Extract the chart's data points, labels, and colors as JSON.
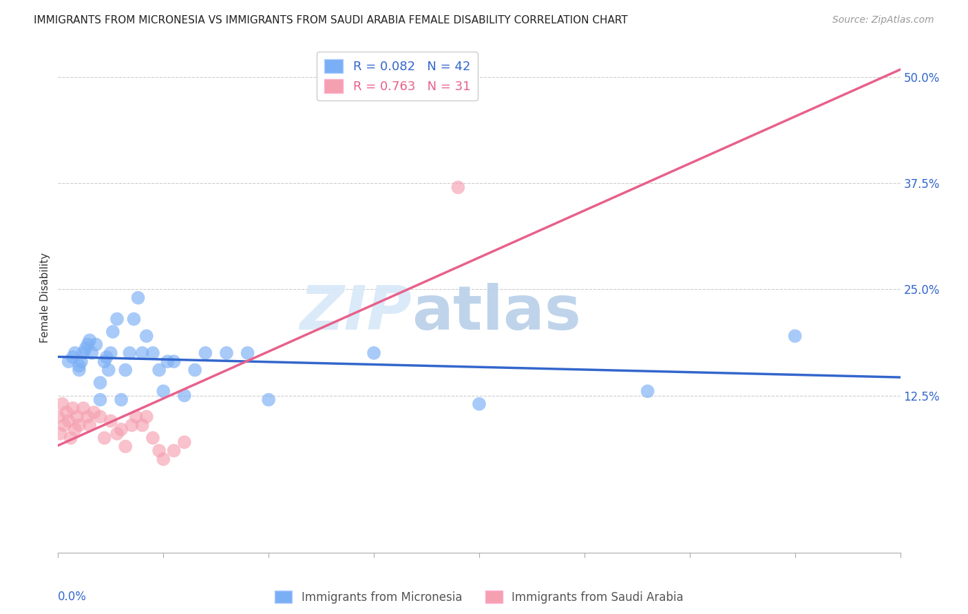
{
  "title": "IMMIGRANTS FROM MICRONESIA VS IMMIGRANTS FROM SAUDI ARABIA FEMALE DISABILITY CORRELATION CHART",
  "source": "Source: ZipAtlas.com",
  "ylabel": "Female Disability",
  "ytick_labels": [
    "12.5%",
    "25.0%",
    "37.5%",
    "50.0%"
  ],
  "ytick_values": [
    0.125,
    0.25,
    0.375,
    0.5
  ],
  "xlim": [
    0.0,
    0.4
  ],
  "ylim": [
    -0.06,
    0.54
  ],
  "micronesia_R": 0.082,
  "micronesia_N": 42,
  "saudi_R": 0.763,
  "saudi_N": 31,
  "micronesia_color": "#7aaef5",
  "saudi_color": "#f5a0b0",
  "micronesia_line_color": "#3366cc",
  "saudi_line_color": "#e8608a",
  "watermark_zip": "ZIP",
  "watermark_atlas": "atlas",
  "micronesia_x": [
    0.005,
    0.007,
    0.008,
    0.01,
    0.01,
    0.011,
    0.012,
    0.013,
    0.014,
    0.015,
    0.016,
    0.018,
    0.02,
    0.02,
    0.022,
    0.023,
    0.024,
    0.025,
    0.026,
    0.028,
    0.03,
    0.032,
    0.034,
    0.036,
    0.038,
    0.04,
    0.042,
    0.045,
    0.048,
    0.05,
    0.052,
    0.055,
    0.06,
    0.065,
    0.07,
    0.08,
    0.09,
    0.1,
    0.15,
    0.2,
    0.28,
    0.35
  ],
  "micronesia_y": [
    0.165,
    0.17,
    0.175,
    0.155,
    0.16,
    0.165,
    0.175,
    0.18,
    0.185,
    0.19,
    0.175,
    0.185,
    0.12,
    0.14,
    0.165,
    0.17,
    0.155,
    0.175,
    0.2,
    0.215,
    0.12,
    0.155,
    0.175,
    0.215,
    0.24,
    0.175,
    0.195,
    0.175,
    0.155,
    0.13,
    0.165,
    0.165,
    0.125,
    0.155,
    0.175,
    0.175,
    0.175,
    0.12,
    0.175,
    0.115,
    0.13,
    0.195
  ],
  "saudi_x": [
    0.0,
    0.001,
    0.002,
    0.003,
    0.004,
    0.005,
    0.006,
    0.007,
    0.008,
    0.009,
    0.01,
    0.012,
    0.014,
    0.015,
    0.017,
    0.02,
    0.022,
    0.025,
    0.028,
    0.03,
    0.032,
    0.035,
    0.037,
    0.04,
    0.042,
    0.045,
    0.048,
    0.05,
    0.055,
    0.06,
    0.19
  ],
  "saudi_y": [
    0.1,
    0.08,
    0.115,
    0.09,
    0.105,
    0.095,
    0.075,
    0.11,
    0.085,
    0.1,
    0.09,
    0.11,
    0.1,
    0.09,
    0.105,
    0.1,
    0.075,
    0.095,
    0.08,
    0.085,
    0.065,
    0.09,
    0.1,
    0.09,
    0.1,
    0.075,
    0.06,
    0.05,
    0.06,
    0.07,
    0.37
  ]
}
